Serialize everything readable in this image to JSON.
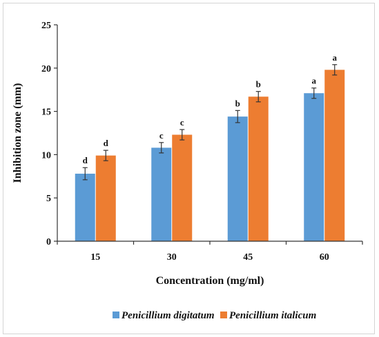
{
  "chart_data": {
    "type": "bar",
    "categories": [
      "15",
      "30",
      "45",
      "60"
    ],
    "series": [
      {
        "name": "Penicillium digitatum",
        "values": [
          7.8,
          10.8,
          14.4,
          17.1
        ],
        "errors": [
          0.7,
          0.6,
          0.7,
          0.6
        ],
        "letters": [
          "d",
          "c",
          "b",
          "a"
        ],
        "color": "#5b9bd5"
      },
      {
        "name": "Penicillium italicum",
        "values": [
          9.9,
          12.3,
          16.7,
          19.8
        ],
        "errors": [
          0.6,
          0.6,
          0.6,
          0.6
        ],
        "letters": [
          "d",
          "c",
          "b",
          "a"
        ],
        "color": "#ed7d31"
      }
    ],
    "title": "",
    "xlabel": "Concentration (mg/ml)",
    "ylabel": "Inhibition  zone (mm)",
    "ylim": [
      0,
      25
    ],
    "yticks": [
      "0",
      "5",
      "10",
      "15",
      "20",
      "25"
    ],
    "grid": false,
    "legend_position": "bottom"
  }
}
